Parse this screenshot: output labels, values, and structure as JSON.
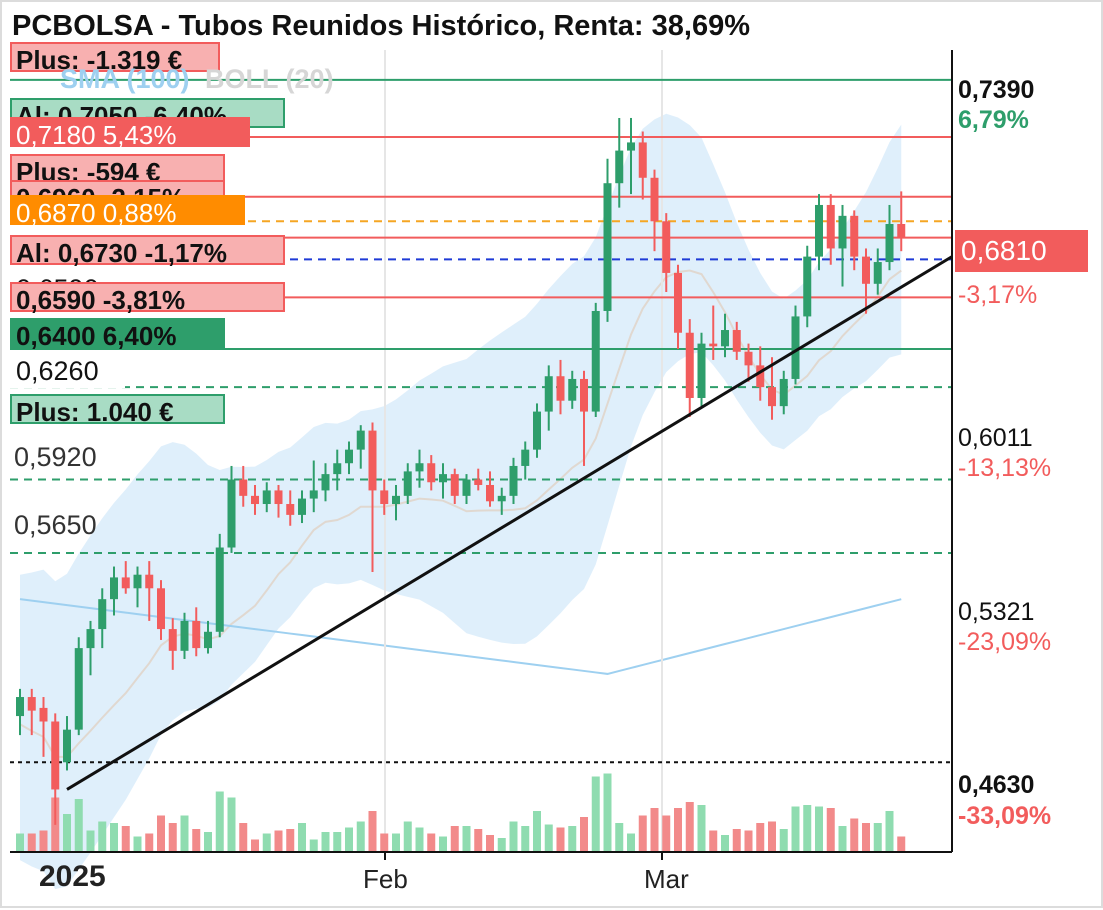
{
  "title": "PCBOLSA - Tubos Reunidos Histórico, Renta: 38,69%",
  "indicators": {
    "sma": "SMA (100)",
    "boll": "BOLL (20)"
  },
  "colors": {
    "up": "#2e9e6b",
    "down": "#f25c5c",
    "up_volume": "#8fdcb0",
    "down_volume": "#f28a8a",
    "band": "#d9ecfa",
    "sma": "#9ed0f0",
    "trend": "#111111"
  },
  "left_boxes": [
    {
      "text": "Plus: -1.319 €"
    },
    {
      "text": "Al: 0,7050 -6,40%"
    },
    {
      "text": "0,7180  5,43%"
    },
    {
      "text": "Plus: -594 €"
    },
    {
      "text": "0,6960 -2,15%"
    },
    {
      "text": "0,6870  0,88%"
    },
    {
      "text": "Al: 0,6730  -1,17%"
    },
    {
      "text": "0,6590"
    },
    {
      "text": "0,6590 -3,81%"
    },
    {
      "text": "0,6400  6,40%"
    },
    {
      "text": "0,6260"
    },
    {
      "text": "Plus: 1.040 €"
    }
  ],
  "left_labels": [
    {
      "text": "0,5920"
    },
    {
      "text": "0,5650"
    }
  ],
  "right_axis": [
    {
      "price": "0,7390",
      "pct": "6,79%"
    },
    {
      "price": "0,6810",
      "pct": "-3,17%"
    },
    {
      "price": "0,6011",
      "pct": "-13,13%"
    },
    {
      "price": "0,5321",
      "pct": "-23,09%"
    },
    {
      "price": "0,4630",
      "pct": "-33,09%"
    }
  ],
  "last_price": "0,6810",
  "date_labels": {
    "year": "2025",
    "feb": "Feb",
    "mar": "Mar"
  },
  "chart_data": {
    "type": "candlestick",
    "title": "PCBOLSA - Tubos Reunidos Histórico, Renta: 38,69%",
    "y_range": [
      0.455,
      0.75
    ],
    "yticks": [
      "0,7390",
      "0,6810",
      "0,6011",
      "0,5321",
      "0,4630"
    ],
    "x_labels": [
      "2025",
      "Feb",
      "Mar"
    ],
    "reference_levels": [
      0.739,
      0.718,
      0.696,
      0.687,
      0.681,
      0.673,
      0.659,
      0.64,
      0.626,
      0.592,
      0.565,
      0.488
    ],
    "candles": [
      [
        0.505,
        0.515,
        0.498,
        0.512
      ],
      [
        0.512,
        0.515,
        0.498,
        0.507
      ],
      [
        0.508,
        0.512,
        0.49,
        0.503
      ],
      [
        0.503,
        0.506,
        0.465,
        0.478
      ],
      [
        0.488,
        0.505,
        0.485,
        0.5
      ],
      [
        0.5,
        0.534,
        0.498,
        0.53
      ],
      [
        0.53,
        0.54,
        0.52,
        0.537
      ],
      [
        0.537,
        0.552,
        0.53,
        0.548
      ],
      [
        0.548,
        0.56,
        0.542,
        0.556
      ],
      [
        0.556,
        0.562,
        0.55,
        0.552
      ],
      [
        0.552,
        0.56,
        0.545,
        0.557
      ],
      [
        0.557,
        0.562,
        0.54,
        0.552
      ],
      [
        0.552,
        0.555,
        0.533,
        0.537
      ],
      [
        0.537,
        0.541,
        0.522,
        0.529
      ],
      [
        0.529,
        0.543,
        0.526,
        0.54
      ],
      [
        0.54,
        0.545,
        0.527,
        0.53
      ],
      [
        0.53,
        0.54,
        0.528,
        0.536
      ],
      [
        0.536,
        0.572,
        0.534,
        0.567
      ],
      [
        0.567,
        0.597,
        0.565,
        0.592
      ],
      [
        0.592,
        0.597,
        0.582,
        0.586
      ],
      [
        0.586,
        0.59,
        0.579,
        0.583
      ],
      [
        0.583,
        0.591,
        0.58,
        0.588
      ],
      [
        0.588,
        0.59,
        0.578,
        0.583
      ],
      [
        0.583,
        0.588,
        0.575,
        0.579
      ],
      [
        0.579,
        0.588,
        0.576,
        0.585
      ],
      [
        0.585,
        0.599,
        0.58,
        0.588
      ],
      [
        0.588,
        0.598,
        0.584,
        0.594
      ],
      [
        0.594,
        0.603,
        0.588,
        0.598
      ],
      [
        0.598,
        0.606,
        0.594,
        0.603
      ],
      [
        0.603,
        0.612,
        0.596,
        0.61
      ],
      [
        0.61,
        0.613,
        0.558,
        0.588
      ],
      [
        0.588,
        0.592,
        0.579,
        0.583
      ],
      [
        0.583,
        0.59,
        0.577,
        0.586
      ],
      [
        0.586,
        0.598,
        0.583,
        0.595
      ],
      [
        0.595,
        0.603,
        0.589,
        0.598
      ],
      [
        0.598,
        0.601,
        0.588,
        0.591
      ],
      [
        0.591,
        0.598,
        0.585,
        0.594
      ],
      [
        0.594,
        0.596,
        0.583,
        0.586
      ],
      [
        0.586,
        0.594,
        0.583,
        0.592
      ],
      [
        0.592,
        0.596,
        0.588,
        0.59
      ],
      [
        0.59,
        0.595,
        0.582,
        0.584
      ],
      [
        0.584,
        0.589,
        0.579,
        0.586
      ],
      [
        0.586,
        0.6,
        0.583,
        0.597
      ],
      [
        0.597,
        0.606,
        0.592,
        0.603
      ],
      [
        0.603,
        0.62,
        0.6,
        0.617
      ],
      [
        0.617,
        0.634,
        0.61,
        0.63
      ],
      [
        0.63,
        0.636,
        0.616,
        0.621
      ],
      [
        0.621,
        0.632,
        0.618,
        0.629
      ],
      [
        0.629,
        0.632,
        0.597,
        0.617
      ],
      [
        0.617,
        0.657,
        0.615,
        0.654
      ],
      [
        0.654,
        0.71,
        0.65,
        0.701
      ],
      [
        0.701,
        0.725,
        0.692,
        0.713
      ],
      [
        0.713,
        0.725,
        0.697,
        0.716
      ],
      [
        0.716,
        0.72,
        0.695,
        0.703
      ],
      [
        0.703,
        0.706,
        0.676,
        0.687
      ],
      [
        0.687,
        0.69,
        0.661,
        0.668
      ],
      [
        0.668,
        0.671,
        0.64,
        0.646
      ],
      [
        0.646,
        0.651,
        0.615,
        0.622
      ],
      [
        0.622,
        0.646,
        0.619,
        0.642
      ],
      [
        0.642,
        0.656,
        0.636,
        0.641
      ],
      [
        0.641,
        0.653,
        0.637,
        0.647
      ],
      [
        0.647,
        0.65,
        0.636,
        0.639
      ],
      [
        0.639,
        0.642,
        0.628,
        0.634
      ],
      [
        0.634,
        0.641,
        0.621,
        0.626
      ],
      [
        0.626,
        0.637,
        0.614,
        0.619
      ],
      [
        0.619,
        0.632,
        0.616,
        0.629
      ],
      [
        0.629,
        0.656,
        0.627,
        0.652
      ],
      [
        0.652,
        0.678,
        0.648,
        0.674
      ],
      [
        0.674,
        0.697,
        0.669,
        0.693
      ],
      [
        0.693,
        0.697,
        0.671,
        0.677
      ],
      [
        0.677,
        0.693,
        0.663,
        0.689
      ],
      [
        0.689,
        0.691,
        0.669,
        0.674
      ],
      [
        0.674,
        0.677,
        0.653,
        0.664
      ],
      [
        0.664,
        0.677,
        0.66,
        0.672
      ],
      [
        0.672,
        0.693,
        0.669,
        0.686
      ],
      [
        0.686,
        0.698,
        0.676,
        0.681
      ]
    ]
  }
}
